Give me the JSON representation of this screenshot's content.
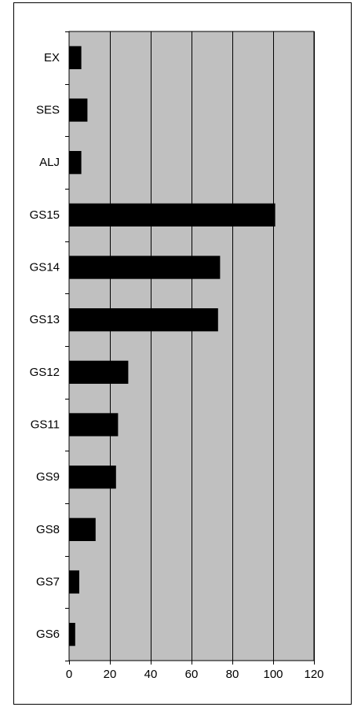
{
  "chart_data": {
    "type": "bar",
    "orientation": "horizontal",
    "title": "",
    "xlabel": "",
    "ylabel": "",
    "categories": [
      "GS6",
      "GS7",
      "GS8",
      "GS9",
      "GS11",
      "GS12",
      "GS13",
      "GS14",
      "GS15",
      "ALJ",
      "SES",
      "EX"
    ],
    "values": [
      3,
      5,
      13,
      23,
      24,
      29,
      73,
      74,
      101,
      6,
      9,
      6
    ],
    "xlim": [
      0,
      120
    ],
    "x_ticks": [
      0,
      20,
      40,
      60,
      80,
      100,
      120
    ],
    "grid": "vertical",
    "legend": "none",
    "colors": {
      "plot_background": "#c0c0c0",
      "bar": "#000000",
      "gridline": "#000000",
      "axis": "#000000"
    }
  }
}
